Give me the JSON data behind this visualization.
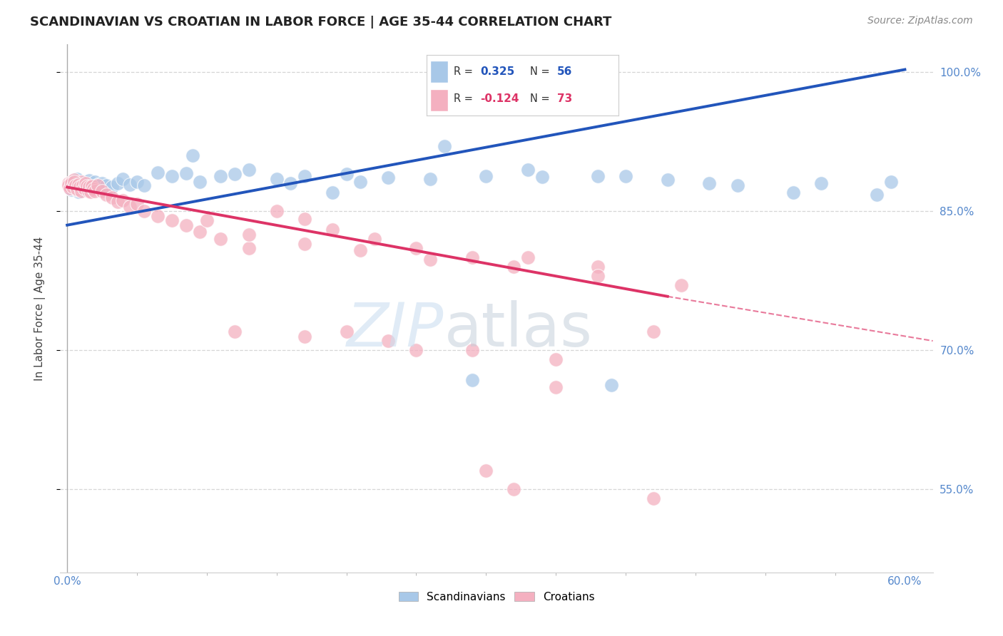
{
  "title": "SCANDINAVIAN VS CROATIAN IN LABOR FORCE | AGE 35-44 CORRELATION CHART",
  "source": "Source: ZipAtlas.com",
  "ylabel": "In Labor Force | Age 35-44",
  "x_tick_labels_outer": [
    "0.0%",
    "60.0%"
  ],
  "x_ticks_outer": [
    0.0,
    0.6
  ],
  "y_tick_labels": [
    "55.0%",
    "70.0%",
    "85.0%",
    "100.0%"
  ],
  "y_ticks": [
    0.55,
    0.7,
    0.85,
    1.0
  ],
  "xlim": [
    -0.005,
    0.62
  ],
  "ylim": [
    0.46,
    1.03
  ],
  "background_color": "#ffffff",
  "grid_color": "#cccccc",
  "legend_r_blue": "0.325",
  "legend_n_blue": "56",
  "legend_r_pink": "-0.124",
  "legend_n_pink": "73",
  "legend_label_blue": "Scandinavians",
  "legend_label_pink": "Croatians",
  "blue_color": "#a8c8e8",
  "pink_color": "#f4b0c0",
  "blue_line_color": "#2255bb",
  "pink_line_color": "#dd3366",
  "blue_line_x0": 0.0,
  "blue_line_y0": 0.835,
  "blue_line_x1": 0.6,
  "blue_line_y1": 1.003,
  "pink_line_solid_x0": 0.0,
  "pink_line_solid_y0": 0.876,
  "pink_line_solid_x1": 0.43,
  "pink_line_solid_y1": 0.758,
  "pink_line_dash_x0": 0.43,
  "pink_line_dash_y0": 0.758,
  "pink_line_dash_x1": 0.62,
  "pink_line_dash_y1": 0.71,
  "blue_x": [
    0.002,
    0.003,
    0.004,
    0.005,
    0.006,
    0.007,
    0.008,
    0.009,
    0.01,
    0.011,
    0.012,
    0.013,
    0.015,
    0.016,
    0.018,
    0.02,
    0.022,
    0.025,
    0.028,
    0.032,
    0.036,
    0.04,
    0.045,
    0.05,
    0.055,
    0.065,
    0.075,
    0.085,
    0.095,
    0.11,
    0.13,
    0.15,
    0.17,
    0.2,
    0.23,
    0.26,
    0.3,
    0.34,
    0.38,
    0.43,
    0.48,
    0.54,
    0.59,
    0.09,
    0.12,
    0.16,
    0.21,
    0.27,
    0.33,
    0.4,
    0.46,
    0.52,
    0.58,
    0.19,
    0.29,
    0.39
  ],
  "blue_y": [
    0.875,
    0.873,
    0.879,
    0.882,
    0.876,
    0.885,
    0.871,
    0.88,
    0.877,
    0.874,
    0.882,
    0.879,
    0.876,
    0.883,
    0.873,
    0.882,
    0.879,
    0.88,
    0.878,
    0.876,
    0.88,
    0.885,
    0.879,
    0.882,
    0.878,
    0.892,
    0.888,
    0.891,
    0.882,
    0.888,
    0.895,
    0.885,
    0.888,
    0.89,
    0.886,
    0.885,
    0.888,
    0.887,
    0.888,
    0.884,
    0.878,
    0.88,
    0.882,
    0.91,
    0.89,
    0.88,
    0.882,
    0.92,
    0.895,
    0.888,
    0.88,
    0.87,
    0.868,
    0.87,
    0.668,
    0.662
  ],
  "pink_x": [
    0.001,
    0.002,
    0.003,
    0.004,
    0.005,
    0.006,
    0.007,
    0.008,
    0.009,
    0.01,
    0.001,
    0.002,
    0.003,
    0.004,
    0.005,
    0.006,
    0.007,
    0.008,
    0.009,
    0.01,
    0.011,
    0.012,
    0.013,
    0.014,
    0.015,
    0.016,
    0.017,
    0.018,
    0.019,
    0.02,
    0.022,
    0.025,
    0.028,
    0.032,
    0.036,
    0.04,
    0.045,
    0.05,
    0.055,
    0.065,
    0.075,
    0.085,
    0.095,
    0.11,
    0.13,
    0.15,
    0.17,
    0.19,
    0.22,
    0.25,
    0.29,
    0.33,
    0.38,
    0.44,
    0.1,
    0.13,
    0.17,
    0.21,
    0.26,
    0.32,
    0.38,
    0.12,
    0.17,
    0.23,
    0.29,
    0.35,
    0.42,
    0.3,
    0.32,
    0.2,
    0.25,
    0.35,
    0.42
  ],
  "pink_y": [
    0.88,
    0.877,
    0.882,
    0.876,
    0.884,
    0.879,
    0.873,
    0.88,
    0.877,
    0.882,
    0.878,
    0.875,
    0.88,
    0.876,
    0.882,
    0.878,
    0.874,
    0.879,
    0.876,
    0.872,
    0.878,
    0.875,
    0.88,
    0.877,
    0.872,
    0.876,
    0.871,
    0.877,
    0.874,
    0.872,
    0.878,
    0.872,
    0.868,
    0.865,
    0.86,
    0.862,
    0.855,
    0.858,
    0.85,
    0.845,
    0.84,
    0.835,
    0.828,
    0.82,
    0.81,
    0.85,
    0.842,
    0.83,
    0.82,
    0.81,
    0.8,
    0.8,
    0.79,
    0.77,
    0.84,
    0.825,
    0.815,
    0.808,
    0.798,
    0.79,
    0.78,
    0.72,
    0.715,
    0.71,
    0.7,
    0.69,
    0.72,
    0.57,
    0.55,
    0.72,
    0.7,
    0.66,
    0.54
  ]
}
